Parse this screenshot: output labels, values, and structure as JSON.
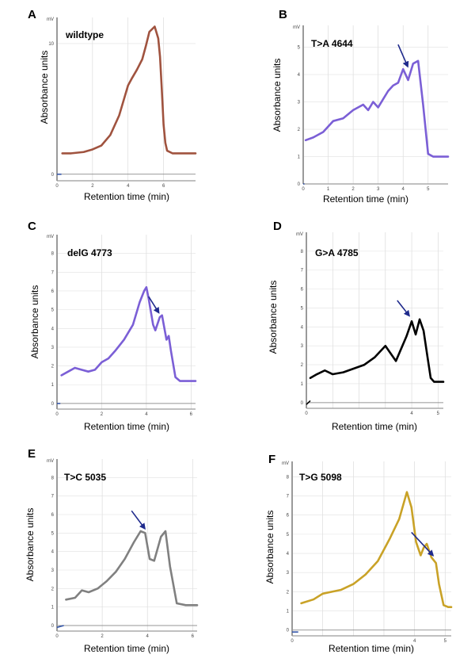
{
  "figure": {
    "xlabel": "Retention time (min)",
    "ylabel": "Absorbance units",
    "unit": "mV",
    "arrow_color": "#1f2a8c"
  },
  "chart_data": [
    {
      "panel": "A",
      "sample": "wildtype",
      "type": "line",
      "color": "#a0533f",
      "xlabel": "Retention time (min)",
      "ylabel": "Absorbance units",
      "yunit": "mV",
      "xlim": [
        0,
        7.8
      ],
      "ylim": [
        -0.5,
        12
      ],
      "xticks": [
        0,
        2,
        4,
        6
      ],
      "xtick_labels": [
        "0",
        "2",
        "4",
        "6"
      ],
      "yticks": [
        0,
        10
      ],
      "ytick_labels": [
        "0",
        "10"
      ],
      "grid": true,
      "baseline_segment": {
        "x": [
          0,
          0.25
        ],
        "y": [
          0,
          0
        ]
      },
      "trace": {
        "x": [
          0.3,
          0.8,
          1.5,
          2.0,
          2.5,
          3.0,
          3.5,
          4.0,
          4.2,
          4.5,
          4.8,
          5.0,
          5.2,
          5.5,
          5.7,
          5.8,
          5.9,
          6.0,
          6.1,
          6.2,
          6.5,
          7.0,
          7.8
        ],
        "y": [
          1.6,
          1.6,
          1.7,
          1.9,
          2.2,
          3.0,
          4.5,
          6.8,
          7.3,
          8.0,
          8.8,
          9.8,
          10.9,
          11.3,
          10.4,
          9.0,
          6.5,
          3.8,
          2.4,
          1.8,
          1.6,
          1.6,
          1.6
        ]
      },
      "arrow": null
    },
    {
      "panel": "B",
      "sample": "T>A 4644",
      "type": "line",
      "color": "#7b5fd6",
      "xlabel": "Retention time (min)",
      "ylabel": "Absorbance units",
      "yunit": "mV",
      "xlim": [
        0,
        5.8
      ],
      "ylim": [
        0,
        5.8
      ],
      "xticks": [
        0,
        1,
        2,
        3,
        4,
        5
      ],
      "xtick_labels": [
        "0",
        "1",
        "2",
        "3",
        "4",
        "5"
      ],
      "yticks": [
        0,
        1,
        2,
        3,
        4,
        5
      ],
      "ytick_labels": [
        "0",
        "1",
        "2",
        "3",
        "4",
        "5"
      ],
      "grid": true,
      "baseline_segment": {
        "x": [
          0,
          0.05
        ],
        "y": [
          0,
          0
        ]
      },
      "trace": {
        "x": [
          0.1,
          0.4,
          0.8,
          1.2,
          1.6,
          2.0,
          2.4,
          2.6,
          2.8,
          3.0,
          3.2,
          3.4,
          3.6,
          3.8,
          4.0,
          4.2,
          4.3,
          4.4,
          4.6,
          4.8,
          5.0,
          5.2,
          5.4,
          5.8
        ],
        "y": [
          1.6,
          1.7,
          1.9,
          2.3,
          2.4,
          2.7,
          2.9,
          2.7,
          3.0,
          2.8,
          3.1,
          3.4,
          3.6,
          3.7,
          4.2,
          3.8,
          4.1,
          4.4,
          4.5,
          2.9,
          1.1,
          1.0,
          1.0,
          1.0
        ]
      },
      "arrow": {
        "from": [
          3.8,
          5.1
        ],
        "to": [
          4.18,
          4.3
        ]
      }
    },
    {
      "panel": "C",
      "sample": "delG 4773",
      "type": "line",
      "color": "#7b5fd6",
      "xlabel": "Retention time (min)",
      "ylabel": "Absorbance units",
      "yunit": "mV",
      "xlim": [
        0,
        6.2
      ],
      "ylim": [
        -0.3,
        9
      ],
      "xticks": [
        0,
        2,
        4,
        6
      ],
      "xtick_labels": [
        "0",
        "2",
        "4",
        "6"
      ],
      "yticks": [
        0,
        1,
        2,
        3,
        4,
        5,
        6,
        7,
        8
      ],
      "ytick_labels": [
        "0",
        "1",
        "2",
        "3",
        "4",
        "5",
        "6",
        "7",
        "8"
      ],
      "grid": true,
      "baseline_segment": {
        "x": [
          0,
          0.15
        ],
        "y": [
          0,
          0
        ]
      },
      "trace": {
        "x": [
          0.2,
          0.5,
          0.8,
          1.1,
          1.4,
          1.7,
          2.0,
          2.3,
          2.6,
          3.0,
          3.4,
          3.7,
          3.9,
          4.0,
          4.1,
          4.3,
          4.4,
          4.6,
          4.7,
          4.9,
          5.0,
          5.1,
          5.3,
          5.5,
          5.8,
          6.2
        ],
        "y": [
          1.5,
          1.7,
          1.9,
          1.8,
          1.7,
          1.8,
          2.2,
          2.4,
          2.8,
          3.4,
          4.2,
          5.4,
          6.0,
          6.2,
          5.6,
          4.2,
          3.9,
          4.6,
          4.7,
          3.4,
          3.6,
          2.8,
          1.4,
          1.2,
          1.2,
          1.2
        ]
      },
      "arrow": {
        "from": [
          4.1,
          5.7
        ],
        "to": [
          4.55,
          4.85
        ]
      }
    },
    {
      "panel": "D",
      "sample": "G>A 4785",
      "type": "line",
      "color": "#000000",
      "xlabel": "Retention time (min)",
      "ylabel": "Absorbance units",
      "yunit": "mV",
      "xlim": [
        0,
        5.2
      ],
      "ylim": [
        -0.3,
        9
      ],
      "xticks": [
        0,
        1,
        2,
        3,
        4,
        5
      ],
      "xtick_labels": [
        "0",
        "",
        "",
        "",
        "4",
        "5"
      ],
      "yticks": [
        0,
        1,
        2,
        3,
        4,
        5,
        6,
        7,
        8
      ],
      "ytick_labels": [
        "0",
        "1",
        "2",
        "3",
        "4",
        "5",
        "6",
        "7",
        "8"
      ],
      "grid": true,
      "baseline_segment": {
        "x": [
          0,
          0.15
        ],
        "y": [
          -0.1,
          0.1
        ]
      },
      "trace": {
        "x": [
          0.15,
          0.4,
          0.7,
          1.0,
          1.4,
          1.8,
          2.2,
          2.6,
          3.0,
          3.4,
          3.8,
          4.0,
          4.15,
          4.3,
          4.45,
          4.6,
          4.72,
          4.85,
          5.0,
          5.2
        ],
        "y": [
          1.3,
          1.5,
          1.7,
          1.5,
          1.6,
          1.8,
          2.0,
          2.4,
          3.0,
          2.2,
          3.5,
          4.3,
          3.6,
          4.4,
          3.8,
          2.4,
          1.3,
          1.1,
          1.1,
          1.1
        ]
      },
      "arrow": {
        "from": [
          3.45,
          5.4
        ],
        "to": [
          3.9,
          4.6
        ]
      }
    },
    {
      "panel": "E",
      "sample": "T>C 5035",
      "type": "line",
      "color": "#808080",
      "xlabel": "Retention time (min)",
      "ylabel": "Absorbance units",
      "yunit": "mV",
      "xlim": [
        0,
        6.2
      ],
      "ylim": [
        -0.3,
        9
      ],
      "xticks": [
        0,
        2,
        4,
        6
      ],
      "xtick_labels": [
        "0",
        "2",
        "4",
        "6"
      ],
      "yticks": [
        0,
        1,
        2,
        3,
        4,
        5,
        6,
        7,
        8
      ],
      "ytick_labels": [
        "0",
        "1",
        "2",
        "3",
        "4",
        "5",
        "6",
        "7",
        "8"
      ],
      "grid": true,
      "baseline_segment": {
        "x": [
          0,
          0.3
        ],
        "y": [
          -0.1,
          0
        ]
      },
      "trace": {
        "x": [
          0.4,
          0.8,
          1.1,
          1.4,
          1.8,
          2.2,
          2.6,
          3.0,
          3.4,
          3.7,
          3.9,
          4.1,
          4.3,
          4.6,
          4.8,
          5.0,
          5.3,
          5.7,
          6.2
        ],
        "y": [
          1.4,
          1.5,
          1.9,
          1.8,
          2.0,
          2.4,
          2.9,
          3.6,
          4.5,
          5.1,
          5.0,
          3.6,
          3.5,
          4.8,
          5.1,
          3.2,
          1.2,
          1.1,
          1.1
        ]
      },
      "arrow": {
        "from": [
          3.3,
          6.2
        ],
        "to": [
          3.88,
          5.25
        ]
      }
    },
    {
      "panel": "F",
      "sample": "T>G 5098",
      "type": "line",
      "color": "#c9a227",
      "xlabel": "Retention time (min)",
      "ylabel": "Absorbance units",
      "yunit": "mV",
      "xlim": [
        0,
        5.2
      ],
      "ylim": [
        -0.3,
        8.8
      ],
      "xticks": [
        0,
        1,
        2,
        3,
        4,
        5
      ],
      "xtick_labels": [
        "0",
        "",
        "",
        "",
        "4",
        "5"
      ],
      "yticks": [
        0,
        1,
        2,
        3,
        4,
        5,
        6,
        7,
        8
      ],
      "ytick_labels": [
        "0",
        "1",
        "2",
        "3",
        "4",
        "5",
        "6",
        "7",
        "8"
      ],
      "grid": true,
      "baseline_segment": {
        "x": [
          0,
          0.2
        ],
        "y": [
          -0.1,
          -0.1
        ]
      },
      "trace": {
        "x": [
          0.3,
          0.7,
          1.0,
          1.3,
          1.6,
          2.0,
          2.4,
          2.8,
          3.2,
          3.5,
          3.75,
          3.9,
          4.05,
          4.2,
          4.3,
          4.4,
          4.55,
          4.7,
          4.8,
          4.95,
          5.1,
          5.3,
          5.6
        ],
        "y": [
          1.4,
          1.6,
          1.9,
          2.0,
          2.1,
          2.4,
          2.9,
          3.6,
          4.8,
          5.8,
          7.2,
          6.4,
          4.6,
          3.9,
          4.3,
          4.5,
          3.8,
          3.5,
          2.4,
          1.3,
          1.2,
          1.2,
          1.2
        ]
      },
      "arrow": {
        "from": [
          3.9,
          5.1
        ],
        "to": [
          4.6,
          3.9
        ]
      }
    }
  ]
}
